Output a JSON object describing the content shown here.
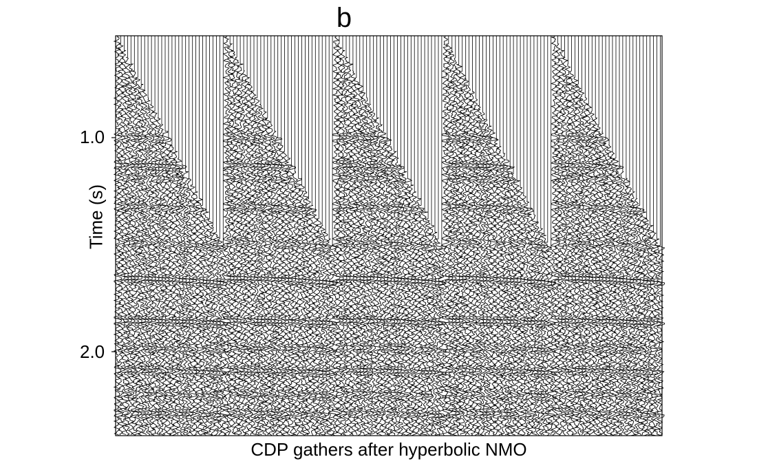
{
  "panel_label": "b",
  "y_axis": {
    "label": "Time (s)",
    "ticks": [
      "1.0",
      "2.0"
    ]
  },
  "x_axis": {
    "label": "CDP gathers after hyperbolic NMO"
  },
  "gathers": {
    "count": 5,
    "traces_per_gather": 32,
    "time_range_s": [
      0.0,
      2.7
    ]
  },
  "colors": {
    "trace": "#000000",
    "background": "#ffffff"
  }
}
